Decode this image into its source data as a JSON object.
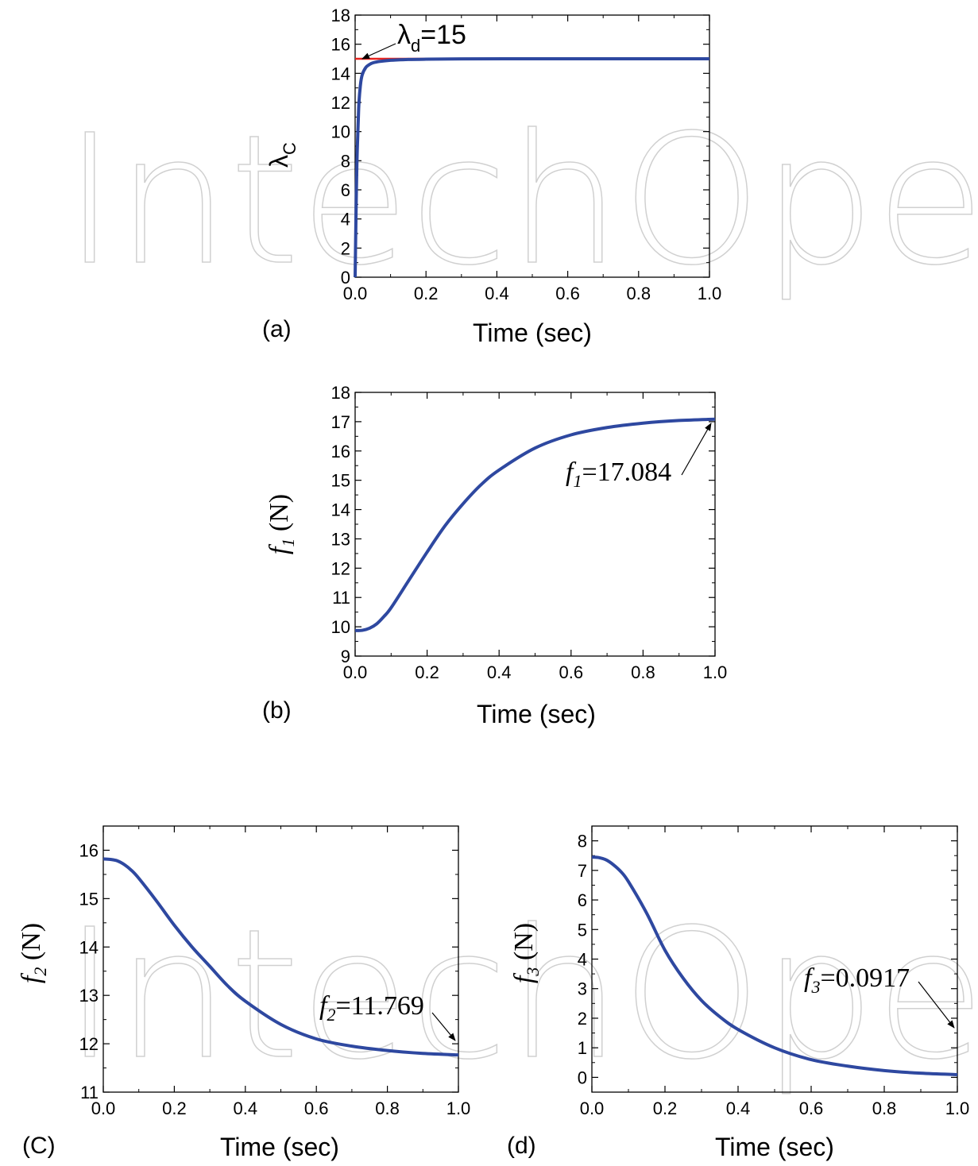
{
  "watermark": "IntechOpen",
  "chart_data": [
    {
      "type": "line",
      "panel_label": "(a)",
      "xlabel": "Time (sec)",
      "ylabel": "λC",
      "xlim": [
        0,
        1.0
      ],
      "ylim": [
        0,
        18
      ],
      "xticks": [
        "0.0",
        "0.2",
        "0.4",
        "0.6",
        "0.8",
        "1.0"
      ],
      "yticks": [
        "0",
        "2",
        "4",
        "6",
        "8",
        "10",
        "12",
        "14",
        "16",
        "18"
      ],
      "series": [
        {
          "color": "#2e48a0",
          "x": [
            0,
            0.002,
            0.005,
            0.01,
            0.015,
            0.02,
            0.03,
            0.04,
            0.05,
            0.07,
            0.1,
            0.15,
            0.2,
            0.3,
            0.5,
            0.7,
            1.0
          ],
          "y": [
            0,
            3.5,
            7.8,
            11.6,
            13.2,
            13.9,
            14.4,
            14.6,
            14.72,
            14.82,
            14.9,
            14.95,
            14.97,
            14.99,
            15.0,
            15.0,
            15.0
          ]
        },
        {
          "color": "#e8231e",
          "x": [
            0,
            1.0
          ],
          "y": [
            15,
            15
          ]
        }
      ],
      "annotations": [
        {
          "text": "λd=15",
          "x": 0.02,
          "y": 15
        }
      ]
    },
    {
      "type": "line",
      "panel_label": "(b)",
      "xlabel": "Time (sec)",
      "ylabel": "f1 (N)",
      "xlim": [
        0,
        1.0
      ],
      "ylim": [
        9,
        18
      ],
      "xticks": [
        "0.0",
        "0.2",
        "0.4",
        "0.6",
        "0.8",
        "1.0"
      ],
      "yticks": [
        "9",
        "10",
        "11",
        "12",
        "13",
        "14",
        "15",
        "16",
        "17",
        "18"
      ],
      "series": [
        {
          "color": "#2e48a0",
          "x": [
            0,
            0.02,
            0.04,
            0.06,
            0.08,
            0.1,
            0.15,
            0.2,
            0.25,
            0.3,
            0.35,
            0.4,
            0.5,
            0.6,
            0.7,
            0.8,
            0.9,
            1.0
          ],
          "y": [
            9.87,
            9.88,
            9.95,
            10.1,
            10.35,
            10.65,
            11.6,
            12.55,
            13.45,
            14.2,
            14.85,
            15.35,
            16.1,
            16.55,
            16.8,
            16.95,
            17.04,
            17.084
          ]
        }
      ],
      "annotations": [
        {
          "text": "f1=17.084",
          "x": 1.0,
          "y": 17.084
        }
      ]
    },
    {
      "type": "line",
      "panel_label": "(C)",
      "xlabel": "Time (sec)",
      "ylabel": "f2 (N)",
      "xlim": [
        0,
        1.0
      ],
      "ylim": [
        11,
        16.5
      ],
      "xticks": [
        "0.0",
        "0.2",
        "0.4",
        "0.6",
        "0.8",
        "1.0"
      ],
      "yticks": [
        "11",
        "12",
        "13",
        "14",
        "15",
        "16"
      ],
      "series": [
        {
          "color": "#2e48a0",
          "x": [
            0,
            0.02,
            0.04,
            0.06,
            0.08,
            0.1,
            0.15,
            0.2,
            0.25,
            0.3,
            0.35,
            0.4,
            0.5,
            0.6,
            0.7,
            0.8,
            0.9,
            1.0
          ],
          "y": [
            15.82,
            15.81,
            15.78,
            15.7,
            15.58,
            15.42,
            14.95,
            14.45,
            14.0,
            13.6,
            13.2,
            12.88,
            12.4,
            12.1,
            11.95,
            11.86,
            11.8,
            11.769
          ]
        }
      ],
      "annotations": [
        {
          "text": "f2=11.769",
          "x": 1.0,
          "y": 11.769
        }
      ]
    },
    {
      "type": "line",
      "panel_label": "(d)",
      "xlabel": "Time (sec)",
      "ylabel": "f3 (N)",
      "xlim": [
        0,
        1.0
      ],
      "ylim": [
        -0.5,
        8.5
      ],
      "xticks": [
        "0.0",
        "0.2",
        "0.4",
        "0.6",
        "0.8",
        "1.0"
      ],
      "yticks": [
        "0",
        "1",
        "2",
        "3",
        "4",
        "5",
        "6",
        "7",
        "8"
      ],
      "series": [
        {
          "color": "#2e48a0",
          "x": [
            0,
            0.02,
            0.04,
            0.06,
            0.08,
            0.1,
            0.15,
            0.2,
            0.25,
            0.3,
            0.35,
            0.4,
            0.5,
            0.6,
            0.7,
            0.8,
            0.9,
            1.0
          ],
          "y": [
            7.45,
            7.43,
            7.35,
            7.18,
            6.95,
            6.62,
            5.55,
            4.3,
            3.35,
            2.6,
            2.05,
            1.62,
            1.0,
            0.6,
            0.38,
            0.23,
            0.14,
            0.0917
          ]
        }
      ],
      "annotations": [
        {
          "text": "f3=0.0917",
          "x": 1.0,
          "y": 0.0917
        }
      ]
    }
  ]
}
